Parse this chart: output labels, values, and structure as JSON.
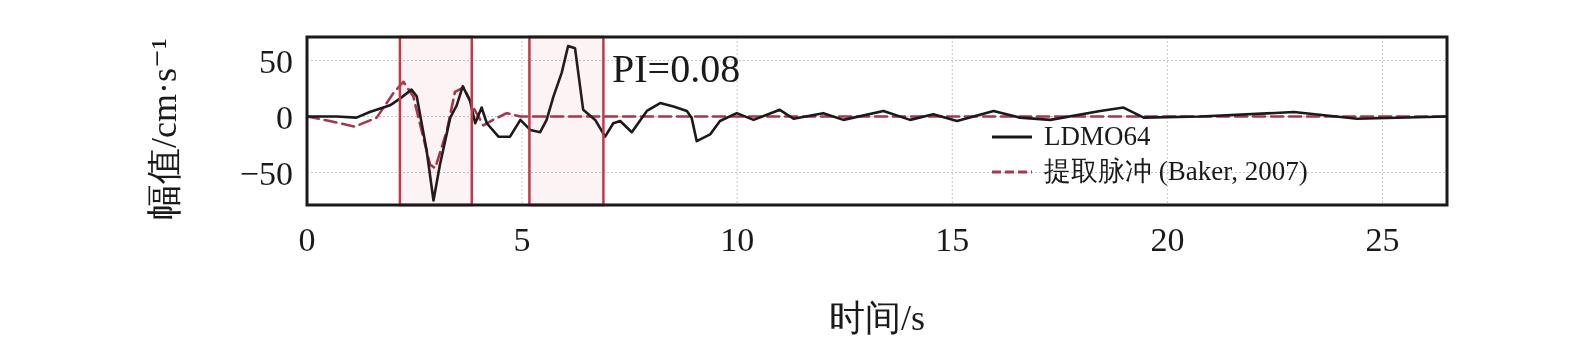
{
  "chart_data": {
    "type": "line",
    "xlabel": "时间/s",
    "ylabel": "幅值/cm·s⁻¹",
    "xlim": [
      0,
      26.5
    ],
    "ylim": [
      -79,
      71
    ],
    "xticks": [
      0,
      5,
      10,
      15,
      20,
      25
    ],
    "yticks": [
      -50,
      0,
      50
    ],
    "grid": true,
    "legend": "bottom right",
    "annotations": [
      "PI=0.08"
    ],
    "bands": [
      {
        "axis": "x",
        "from": 2.16,
        "to": 3.83,
        "color": "#c03a4a"
      },
      {
        "axis": "x",
        "from": 5.17,
        "to": 6.89,
        "color": "#c03a4a"
      }
    ],
    "series": [
      {
        "name": "LDMO64",
        "color": "#1a1a1a",
        "line_style": "solid",
        "x": [
          0,
          0.69,
          1.15,
          1.46,
          1.93,
          2.16,
          2.43,
          2.55,
          2.78,
          2.94,
          3.09,
          3.33,
          3.48,
          3.62,
          3.79,
          3.91,
          4.06,
          4.18,
          4.45,
          4.72,
          4.96,
          5.19,
          5.42,
          5.57,
          5.73,
          5.92,
          6.07,
          6.23,
          6.42,
          6.7,
          6.93,
          7.12,
          7.28,
          7.55,
          7.9,
          8.21,
          8.52,
          8.83,
          8.94,
          9.06,
          9.37,
          9.6,
          9.99,
          10.38,
          10.99,
          11.31,
          12.0,
          12.47,
          13.4,
          14.02,
          14.56,
          15.11,
          15.96,
          16.57,
          17.28,
          18.44,
          18.98,
          19.45,
          20.77,
          22.94,
          24.41,
          26.5
        ],
        "values": [
          0,
          0,
          -1,
          4,
          10,
          16,
          24,
          18,
          -30,
          -75,
          -43,
          -1,
          10,
          27,
          14,
          -6,
          8,
          -6,
          -18,
          -18,
          -3,
          -12,
          -14,
          -3,
          18,
          39,
          63,
          61,
          6,
          -3,
          -18,
          -6,
          -4,
          -14,
          5,
          12,
          9,
          5,
          -1,
          -22,
          -16,
          -4,
          3,
          -3,
          6,
          -2,
          3,
          -3,
          5,
          -3,
          2,
          -4,
          5,
          -1,
          -3,
          5,
          8,
          -1,
          0,
          4,
          -2,
          0
        ]
      },
      {
        "name": "提取脉冲 (Baker, 2007)",
        "color": "#a8364a",
        "line_style": "dashed",
        "x": [
          0,
          0.53,
          1.11,
          1.62,
          2.01,
          2.24,
          2.47,
          2.86,
          2.98,
          3.25,
          3.44,
          3.64,
          3.87,
          4.1,
          4.33,
          4.64,
          4.96,
          26.5
        ],
        "values": [
          0,
          -4,
          -9,
          -1,
          21,
          31,
          18,
          -43,
          -46,
          -13,
          22,
          26,
          8,
          -8,
          -3,
          3,
          0,
          0
        ]
      }
    ]
  }
}
